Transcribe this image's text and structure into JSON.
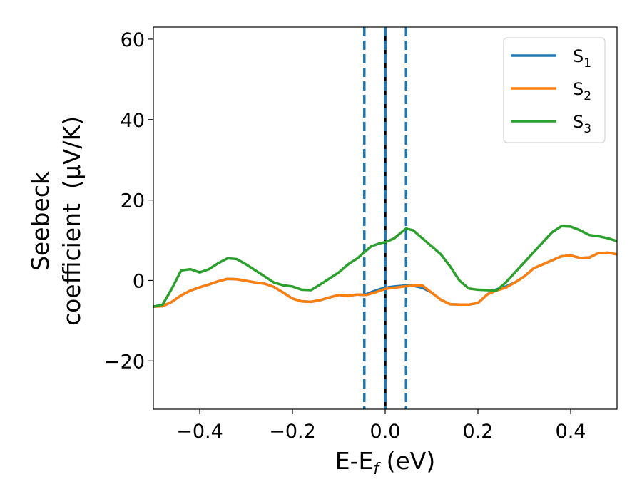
{
  "chart_data": {
    "type": "line",
    "title": "",
    "xlabel": {
      "main": "E-E",
      "sub": "f",
      "unit": " (eV)"
    },
    "ylabel": {
      "line1": "Seebeck",
      "line2": "coefficient",
      "unit": "(μV/K)"
    },
    "xlim": [
      -0.5,
      0.5
    ],
    "ylim": [
      -32,
      63
    ],
    "xticks": [
      -0.4,
      -0.2,
      0.0,
      0.2,
      0.4
    ],
    "xtick_labels": [
      "−0.4",
      "−0.2",
      "0.0",
      "0.2",
      "0.4"
    ],
    "yticks": [
      -20,
      0,
      20,
      40,
      60
    ],
    "ytick_labels": [
      "−20",
      "0",
      "20",
      "40",
      "60"
    ],
    "grid": false,
    "legend_position": "top-right",
    "vlines": [
      {
        "x": 0.0,
        "style": "solid",
        "color": "#000000"
      },
      {
        "x": 0.0,
        "style": "dashed",
        "color": "#1f77b4"
      },
      {
        "x": -0.045,
        "style": "dashed",
        "color": "#1f77b4"
      },
      {
        "x": 0.045,
        "style": "dashed",
        "color": "#1f77b4"
      }
    ],
    "series": [
      {
        "name": "S",
        "sub": "1",
        "color": "#1f77b4",
        "x": [
          -0.5,
          -0.48,
          -0.46,
          -0.44,
          -0.42,
          -0.4,
          -0.38,
          -0.36,
          -0.34,
          -0.32,
          -0.3,
          -0.28,
          -0.26,
          -0.24,
          -0.22,
          -0.2,
          -0.18,
          -0.16,
          -0.14,
          -0.12,
          -0.1,
          -0.08,
          -0.06,
          -0.045,
          -0.03,
          -0.01,
          0.0,
          0.02,
          0.04,
          0.05,
          0.06,
          0.08,
          0.1,
          0.12,
          0.14,
          0.16,
          0.18,
          0.2,
          0.22,
          0.24,
          0.26,
          0.28,
          0.3,
          0.32,
          0.34,
          0.36,
          0.38,
          0.4,
          0.42,
          0.44,
          0.46,
          0.48,
          0.5
        ],
        "y": [
          -6.5,
          -6.4,
          -5.3,
          -3.7,
          -2.5,
          -1.7,
          -1.0,
          -0.2,
          0.4,
          0.3,
          -0.1,
          -0.5,
          -0.8,
          -1.6,
          -3.0,
          -4.5,
          -5.2,
          -5.3,
          -4.9,
          -4.2,
          -3.6,
          -3.8,
          -3.5,
          -3.6,
          -2.9,
          -2.1,
          -1.8,
          -1.5,
          -1.3,
          -1.2,
          -1.3,
          -1.8,
          -3.0,
          -4.8,
          -5.9,
          -6.0,
          -6.0,
          -5.6,
          -3.5,
          -2.2,
          -1.5,
          -0.5,
          1.0,
          3.0,
          4.0,
          5.0,
          6.0,
          6.2,
          5.6,
          5.7,
          6.8,
          6.9,
          6.5
        ]
      },
      {
        "name": "S",
        "sub": "2",
        "color": "#ff7f0e",
        "x": [
          -0.5,
          -0.48,
          -0.46,
          -0.44,
          -0.42,
          -0.4,
          -0.38,
          -0.36,
          -0.34,
          -0.32,
          -0.3,
          -0.28,
          -0.26,
          -0.24,
          -0.22,
          -0.2,
          -0.18,
          -0.16,
          -0.14,
          -0.12,
          -0.1,
          -0.08,
          -0.06,
          -0.04,
          -0.02,
          0.0,
          0.02,
          0.04,
          0.06,
          0.08,
          0.1,
          0.12,
          0.14,
          0.16,
          0.18,
          0.2,
          0.22,
          0.24,
          0.26,
          0.28,
          0.3,
          0.32,
          0.34,
          0.36,
          0.38,
          0.4,
          0.42,
          0.44,
          0.46,
          0.48,
          0.5
        ],
        "y": [
          -6.5,
          -6.4,
          -5.3,
          -3.7,
          -2.5,
          -1.7,
          -1.0,
          -0.2,
          0.4,
          0.3,
          -0.1,
          -0.5,
          -0.8,
          -1.6,
          -3.0,
          -4.5,
          -5.2,
          -5.3,
          -4.9,
          -4.2,
          -3.6,
          -3.8,
          -3.5,
          -3.6,
          -2.9,
          -2.1,
          -1.8,
          -1.5,
          -1.3,
          -1.2,
          -3.0,
          -4.8,
          -5.9,
          -6.0,
          -6.0,
          -5.6,
          -3.5,
          -2.5,
          -1.8,
          -0.5,
          1.0,
          3.0,
          4.0,
          5.0,
          6.0,
          6.2,
          5.6,
          5.7,
          6.8,
          6.9,
          6.5
        ]
      },
      {
        "name": "S",
        "sub": "3",
        "color": "#2ca02c",
        "x": [
          -0.5,
          -0.48,
          -0.46,
          -0.44,
          -0.42,
          -0.4,
          -0.38,
          -0.36,
          -0.34,
          -0.32,
          -0.3,
          -0.28,
          -0.26,
          -0.24,
          -0.22,
          -0.2,
          -0.18,
          -0.16,
          -0.14,
          -0.12,
          -0.1,
          -0.08,
          -0.06,
          -0.045,
          -0.03,
          -0.01,
          0.0,
          0.02,
          0.03,
          0.045,
          0.06,
          0.08,
          0.1,
          0.12,
          0.14,
          0.16,
          0.18,
          0.2,
          0.22,
          0.24,
          0.26,
          0.28,
          0.3,
          0.32,
          0.34,
          0.36,
          0.38,
          0.4,
          0.42,
          0.44,
          0.46,
          0.48,
          0.5
        ],
        "y": [
          -6.5,
          -6.0,
          -2.0,
          2.5,
          2.8,
          2.0,
          2.8,
          4.3,
          5.5,
          5.3,
          4.0,
          2.5,
          1.0,
          -0.5,
          -1.2,
          -1.5,
          -2.3,
          -2.4,
          -1.0,
          0.5,
          2.0,
          4.0,
          5.5,
          7.0,
          8.5,
          9.3,
          9.5,
          10.5,
          11.5,
          12.9,
          12.5,
          10.5,
          8.5,
          6.5,
          3.5,
          0.0,
          -2.0,
          -2.3,
          -2.4,
          -2.5,
          -0.5,
          2.0,
          4.5,
          7.0,
          9.5,
          12.0,
          13.5,
          13.4,
          12.5,
          11.3,
          11.0,
          10.5,
          9.8
        ]
      }
    ]
  }
}
